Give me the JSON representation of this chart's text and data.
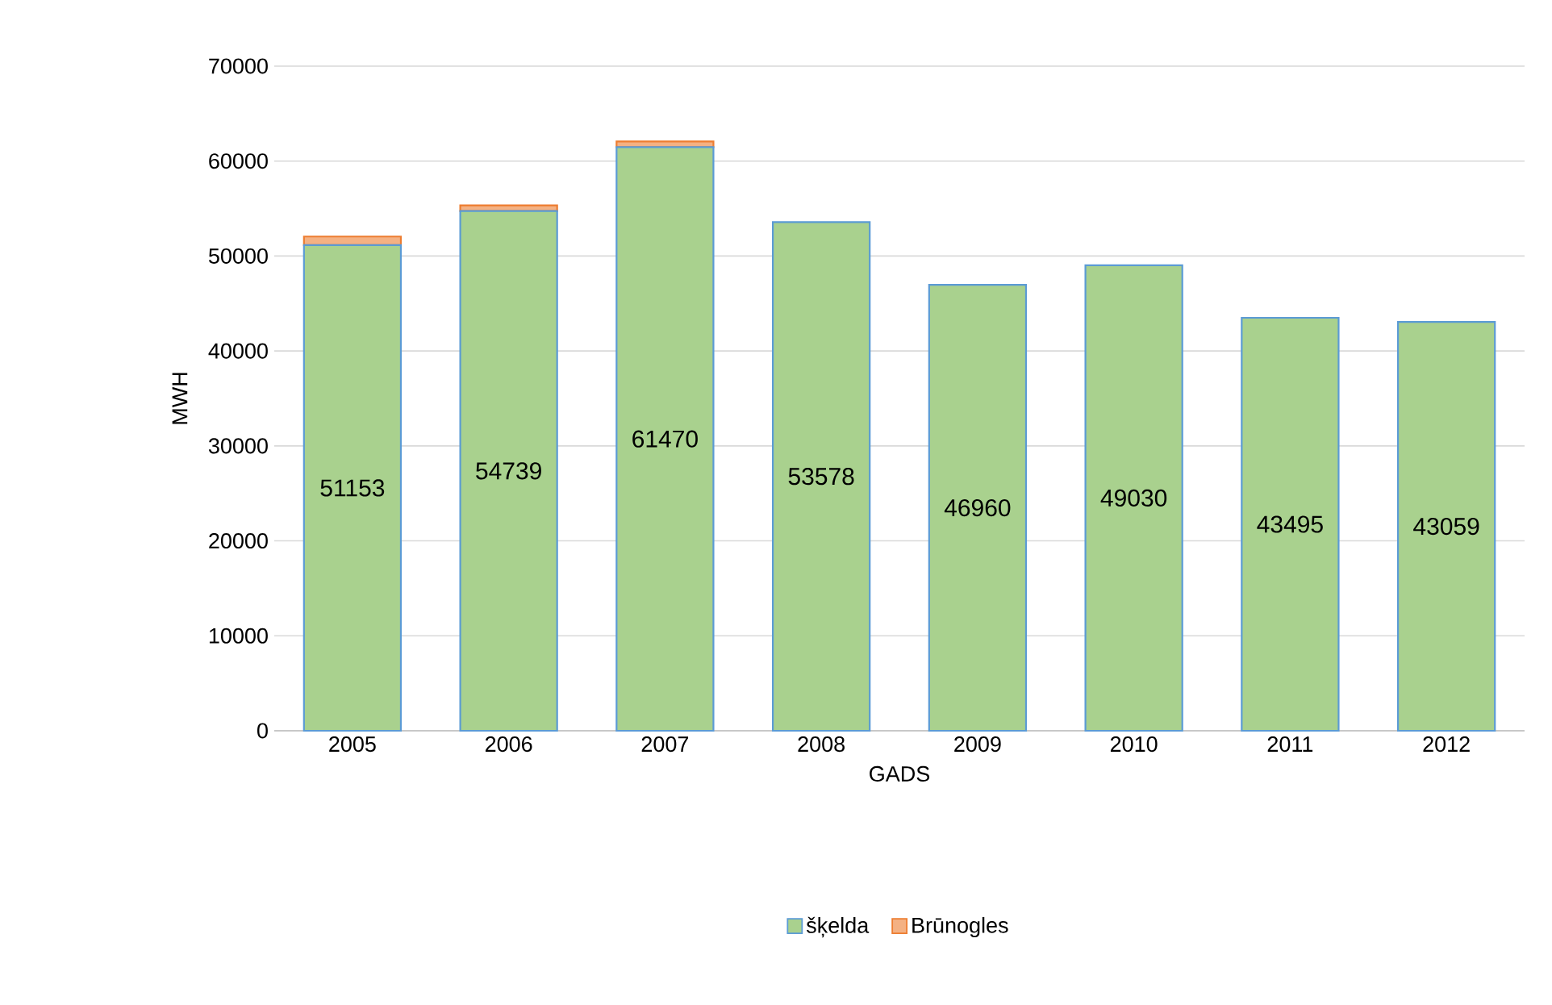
{
  "chart_data": {
    "type": "bar",
    "stacked": true,
    "xlabel": "GADS",
    "ylabel": "MWH",
    "categories": [
      "2005",
      "2006",
      "2007",
      "2008",
      "2009",
      "2010",
      "2011",
      "2012"
    ],
    "series": [
      {
        "name": "šķelda",
        "color": "#a9d18e",
        "values": [
          51153,
          54739,
          61470,
          53578,
          46960,
          49030,
          43495,
          43059
        ],
        "value_labels": [
          "51153",
          "54739",
          "61470",
          "53578",
          "46960",
          "49030",
          "43495",
          "43059"
        ]
      },
      {
        "name": "Brūnogles",
        "color": "#f4b183",
        "values": [
          900,
          600,
          600,
          0,
          0,
          0,
          0,
          0
        ]
      }
    ],
    "ylim": [
      0,
      70000
    ],
    "yticks": [
      0,
      10000,
      20000,
      30000,
      40000,
      50000,
      60000,
      70000
    ],
    "grid": "y",
    "legend": "bottom"
  }
}
